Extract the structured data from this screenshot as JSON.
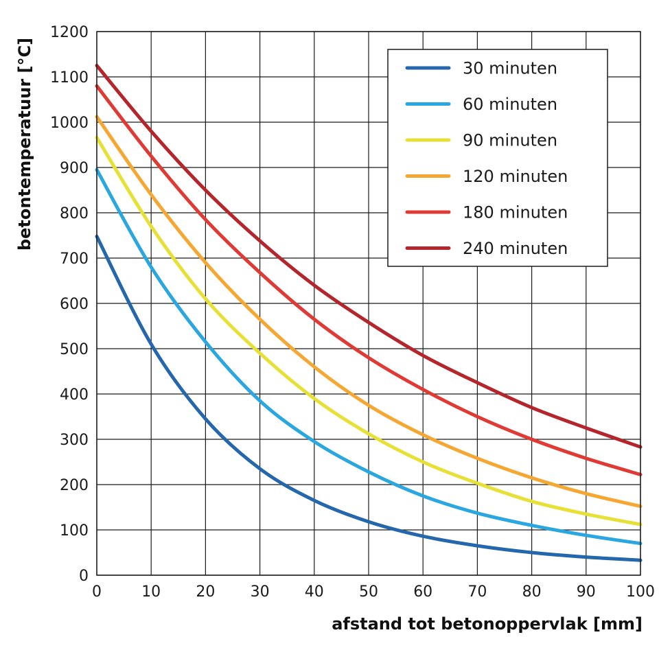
{
  "chart_data": {
    "type": "line",
    "xlabel": "afstand tot betonoppervlak [mm]",
    "ylabel": "betontemperatuur [°C]",
    "xlim": [
      0,
      100
    ],
    "ylim": [
      0,
      1200
    ],
    "x_ticks": [
      "0",
      "10",
      "20",
      "30",
      "40",
      "50",
      "60",
      "70",
      "80",
      "90",
      "100"
    ],
    "y_ticks": [
      "0",
      "100",
      "200",
      "300",
      "400",
      "500",
      "600",
      "700",
      "800",
      "900",
      "1000",
      "1100",
      "1200"
    ],
    "grid": true,
    "legend_position": "top-right",
    "x": [
      0,
      10,
      20,
      30,
      40,
      50,
      60,
      70,
      80,
      90,
      100
    ],
    "series": [
      {
        "name": "30 minuten",
        "color": "#2467ad",
        "values": [
          748,
          510,
          345,
          235,
          165,
          118,
          86,
          65,
          50,
          40,
          33
        ]
      },
      {
        "name": "60 minuten",
        "color": "#2aa6e0",
        "values": [
          895,
          680,
          515,
          385,
          295,
          228,
          175,
          137,
          110,
          88,
          70
        ]
      },
      {
        "name": "90 minuten",
        "color": "#e7e036",
        "values": [
          966,
          770,
          610,
          490,
          390,
          312,
          250,
          203,
          163,
          135,
          112
        ]
      },
      {
        "name": "120 minuten",
        "color": "#f5a732",
        "values": [
          1012,
          840,
          690,
          565,
          460,
          375,
          310,
          258,
          215,
          180,
          152
        ]
      },
      {
        "name": "180 minuten",
        "color": "#e03a34",
        "values": [
          1080,
          925,
          785,
          668,
          565,
          480,
          410,
          350,
          300,
          258,
          222
        ]
      },
      {
        "name": "240 minuten",
        "color": "#b4262c",
        "values": [
          1125,
          980,
          850,
          738,
          640,
          558,
          485,
          425,
          370,
          325,
          283
        ]
      }
    ]
  }
}
